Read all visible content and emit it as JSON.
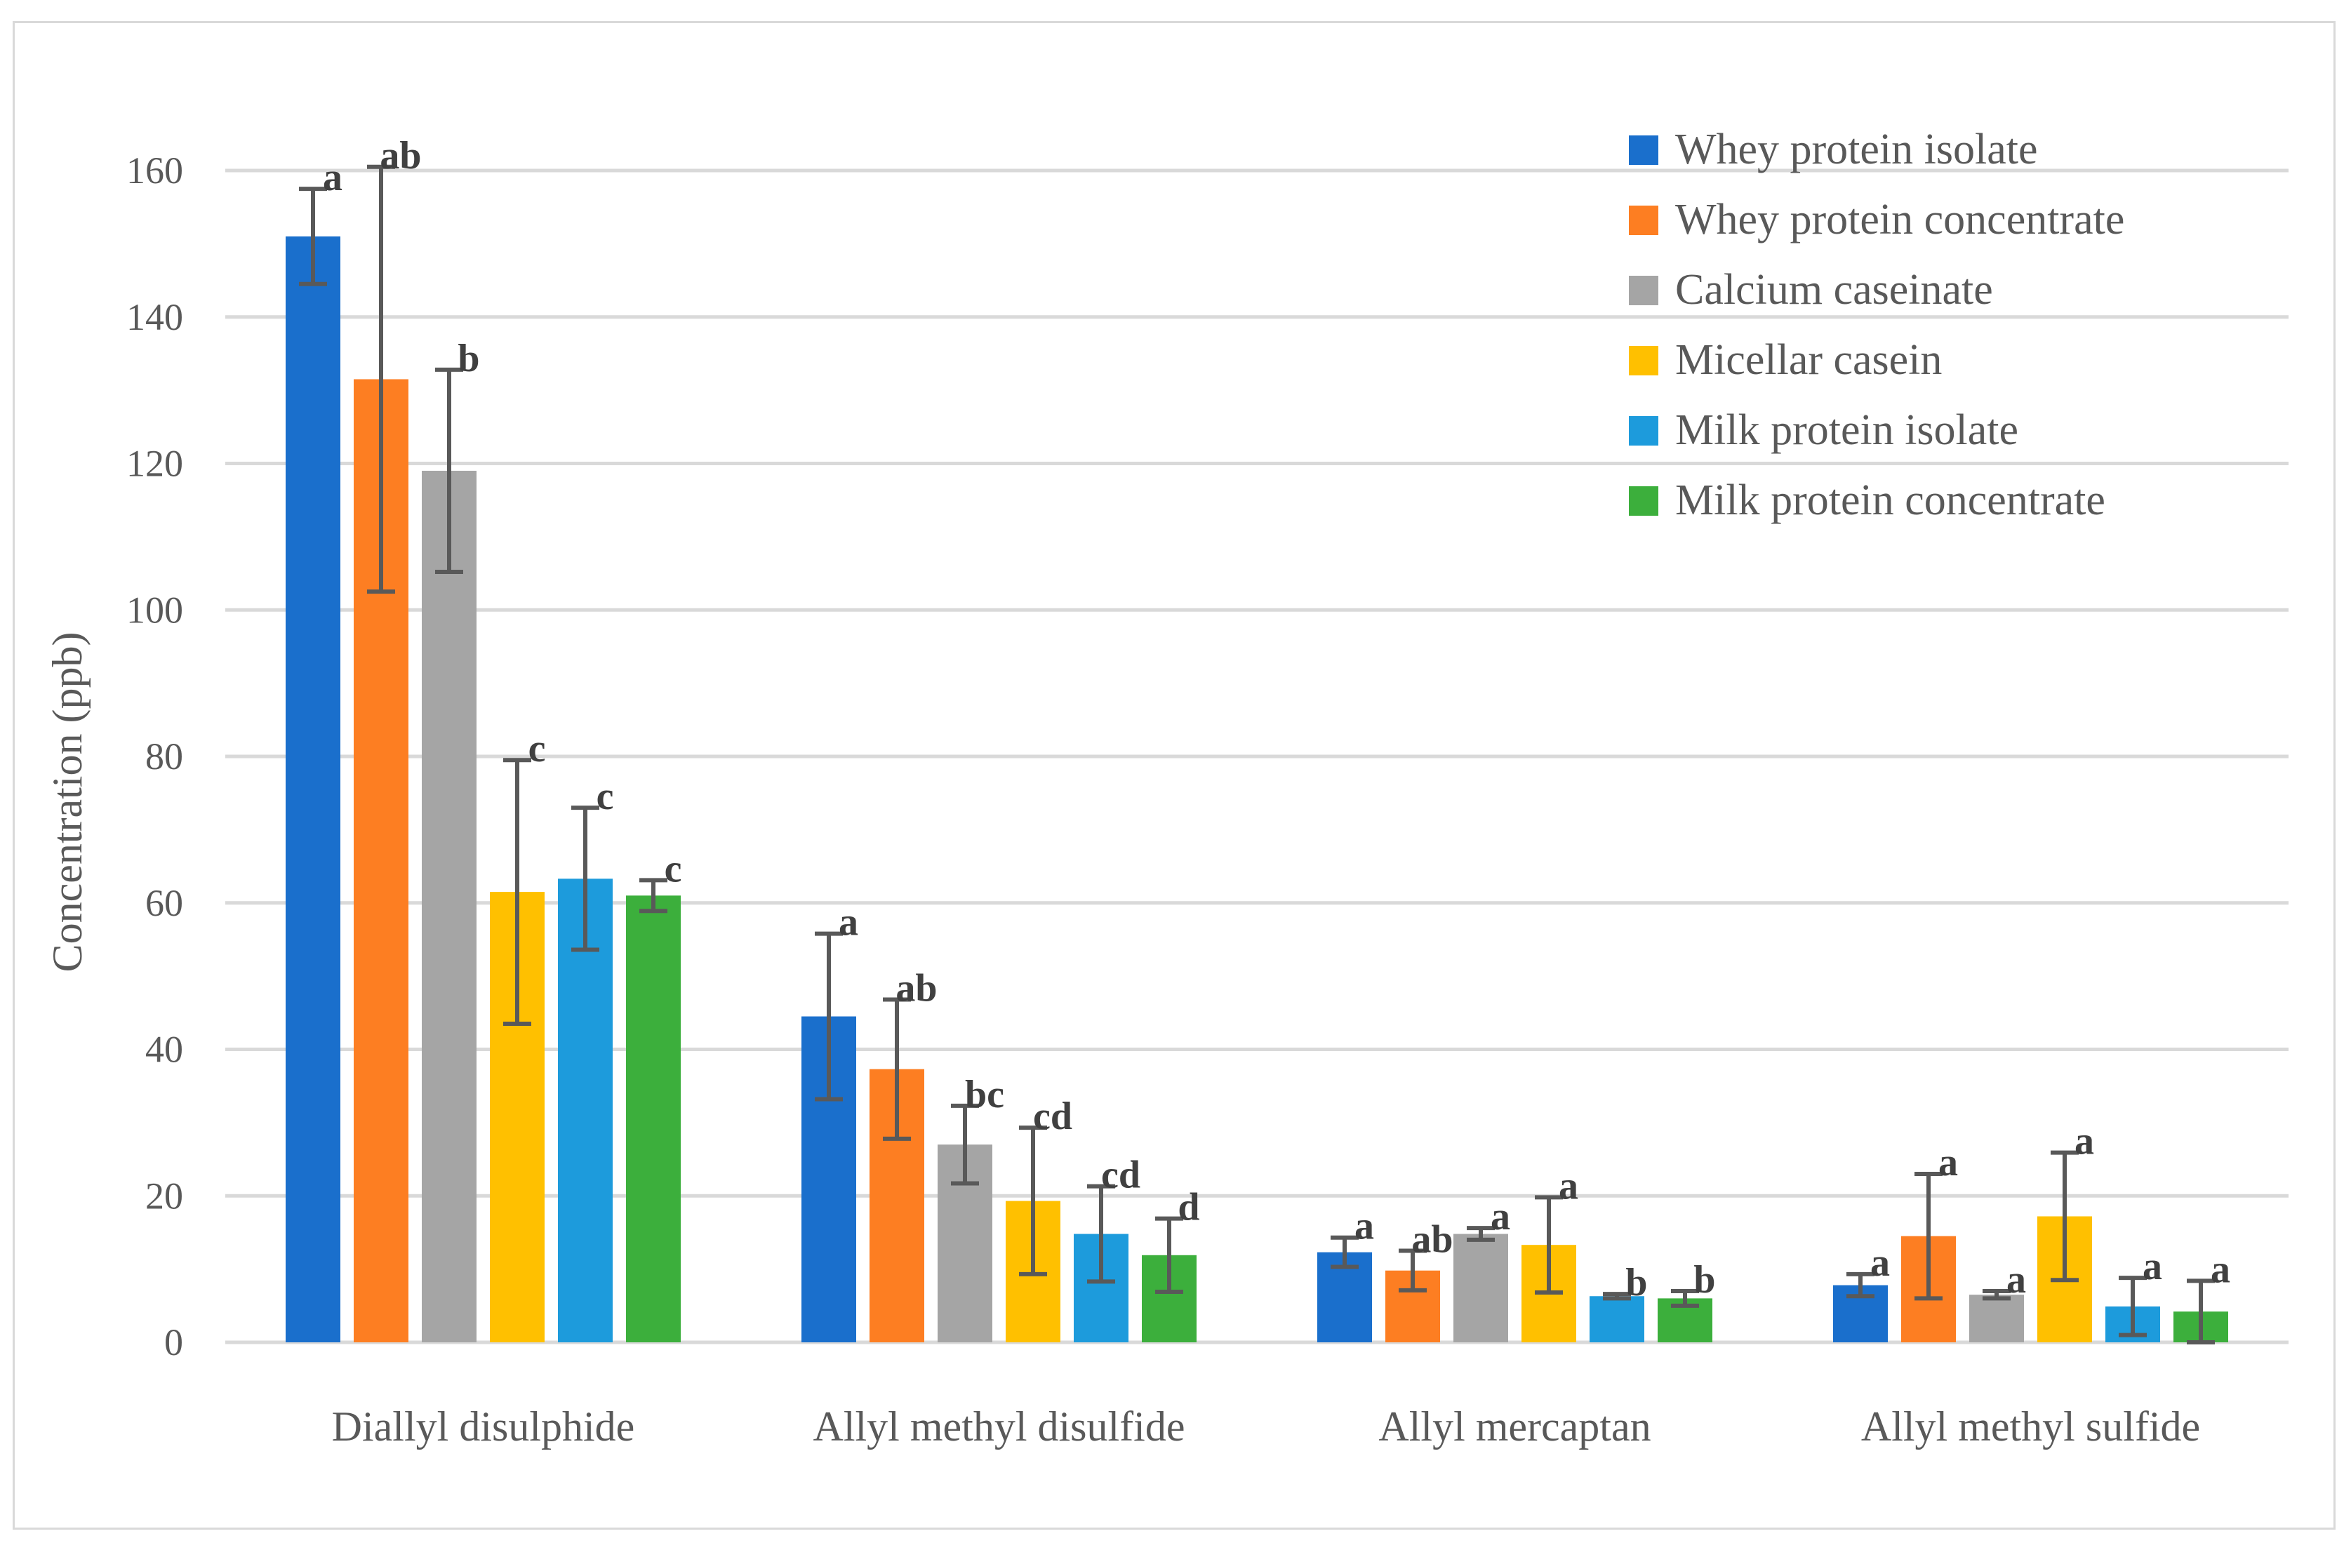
{
  "chart_data": {
    "type": "bar",
    "title": "",
    "xlabel": "",
    "ylabel": "Concentration (ppb)",
    "ylim": [
      0,
      160
    ],
    "yticks": [
      0,
      20,
      40,
      60,
      80,
      100,
      120,
      140,
      160
    ],
    "grid": true,
    "legend_position": "top-right",
    "categories": [
      "Diallyl disulphide",
      "Allyl methyl disulfide",
      "Allyl mercaptan",
      "Allyl methyl sulfide"
    ],
    "series": [
      {
        "name": "Whey protein isolate",
        "color": "#1a6fcc",
        "values": [
          151,
          44.5,
          12.3,
          7.8
        ],
        "errors": [
          6.5,
          11.3,
          2.0,
          1.5
        ],
        "letters": [
          "a",
          "a",
          "a",
          "a"
        ]
      },
      {
        "name": "Whey protein concentrate",
        "color": "#fd7e22",
        "values": [
          131.5,
          37.3,
          9.8,
          14.5
        ],
        "errors": [
          29.0,
          9.5,
          2.7,
          8.5
        ],
        "letters": [
          "ab",
          "ab",
          "ab",
          "a"
        ]
      },
      {
        "name": "Calcium caseinate",
        "color": "#a5a5a5",
        "values": [
          119,
          27,
          14.8,
          6.5
        ],
        "errors": [
          13.8,
          5.3,
          0.8,
          0.5
        ],
        "letters": [
          "b",
          "bc",
          "a",
          "a"
        ]
      },
      {
        "name": "Micellar casein",
        "color": "#ffc000",
        "values": [
          61.5,
          19.3,
          13.3,
          17.2
        ],
        "errors": [
          18.0,
          10.0,
          6.5,
          8.7
        ],
        "letters": [
          "c",
          "cd",
          "a",
          "a"
        ]
      },
      {
        "name": "Milk protein isolate",
        "color": "#1d9bdc",
        "values": [
          63.3,
          14.8,
          6.3,
          4.9
        ],
        "errors": [
          9.7,
          6.5,
          0.3,
          3.9
        ],
        "letters": [
          "c",
          "cd",
          "b",
          "a"
        ]
      },
      {
        "name": "Milk protein concentrate",
        "color": "#3caf3c",
        "values": [
          61,
          11.9,
          6.0,
          4.2
        ],
        "errors": [
          2.1,
          5.0,
          1.0,
          4.2
        ],
        "letters": [
          "c",
          "d",
          "b",
          "a"
        ]
      }
    ]
  }
}
